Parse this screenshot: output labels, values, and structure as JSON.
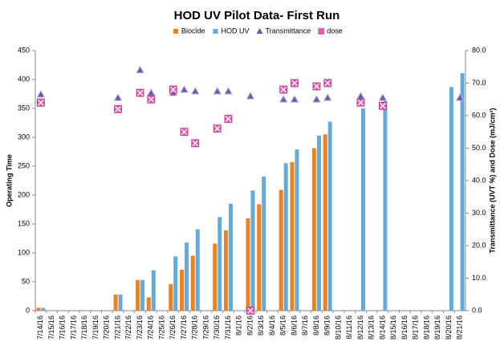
{
  "chart_data": {
    "type": "combo",
    "title": "HOD UV Pilot Data- First Run",
    "y_label": "Operating Time",
    "y2_label": "Transmittance (UVT %) and Dose (mJ/cm²)",
    "legend": "top",
    "categories": [
      "7/14/16",
      "7/15/16",
      "7/16/16",
      "7/17/16",
      "7/18/16",
      "7/19/16",
      "7/20/16",
      "7/21/16",
      "7/22/16",
      "7/23/16",
      "7/24/16",
      "7/25/16",
      "7/26/16",
      "7/27/16",
      "7/28/16",
      "7/29/16",
      "7/30/16",
      "7/31/16",
      "8/1/16",
      "8/2/16",
      "8/3/16",
      "8/4/16",
      "8/5/16",
      "8/6/16",
      "8/7/16",
      "8/8/16",
      "8/9/16",
      "8/10/16",
      "8/11/16",
      "8/12/16",
      "8/13/16",
      "8/14/16",
      "8/15/16",
      "8/16/16",
      "8/17/16",
      "8/18/16",
      "8/19/16",
      "8/20/16",
      "8/21/16"
    ],
    "ylim": [
      0,
      450
    ],
    "yticks": [
      0,
      50,
      100,
      150,
      200,
      250,
      300,
      350,
      400,
      450
    ],
    "y2lim": [
      0,
      80
    ],
    "y2ticks": [
      {
        "value": 0,
        "label": "0.0"
      },
      {
        "value": 10,
        "label": "10.0"
      },
      {
        "value": 20,
        "label": "20.0"
      },
      {
        "value": 30,
        "label": "30.0"
      },
      {
        "value": 40,
        "label": "40.0"
      },
      {
        "value": 50,
        "label": "50.0"
      },
      {
        "value": 60,
        "label": "60.0"
      },
      {
        "value": 70,
        "label": "70.0"
      },
      {
        "value": 80,
        "label": "80.0"
      }
    ],
    "series": [
      {
        "name": "Biocide",
        "kind": "bar",
        "color": "#f0821e",
        "axis": "y",
        "values": [
          5,
          null,
          null,
          null,
          null,
          null,
          null,
          28,
          null,
          53,
          23,
          null,
          46,
          71,
          95,
          null,
          116,
          139,
          null,
          160,
          184,
          null,
          209,
          257,
          null,
          281,
          305,
          null,
          null,
          null,
          null,
          null,
          null,
          null,
          null,
          null,
          null,
          null,
          null
        ]
      },
      {
        "name": "HOD UV",
        "kind": "bar",
        "color": "#67a9d8",
        "axis": "y",
        "values": [
          5,
          null,
          null,
          null,
          null,
          null,
          null,
          28,
          null,
          53,
          70,
          null,
          94,
          118,
          141,
          null,
          162,
          185,
          null,
          208,
          232,
          null,
          255,
          279,
          null,
          303,
          327,
          null,
          null,
          350,
          null,
          363,
          null,
          null,
          null,
          null,
          null,
          387,
          411
        ]
      },
      {
        "name": "Transmittance",
        "kind": "triangle",
        "color": "#6a5aa8",
        "axis": "y2",
        "values": [
          66.5,
          null,
          null,
          null,
          null,
          null,
          null,
          65.5,
          null,
          74,
          67,
          null,
          67,
          68,
          67.5,
          null,
          67.5,
          67.5,
          null,
          66,
          null,
          null,
          65,
          65,
          null,
          65,
          65.5,
          null,
          null,
          66,
          null,
          65.5,
          null,
          null,
          null,
          null,
          null,
          null,
          65.5
        ]
      },
      {
        "name": "dose",
        "kind": "xsquare",
        "color": "#e060b0",
        "axis": "y2",
        "values": [
          64,
          null,
          null,
          null,
          null,
          null,
          null,
          62,
          null,
          67,
          65,
          null,
          68,
          55,
          51.5,
          null,
          56,
          59,
          null,
          0,
          null,
          null,
          68,
          70,
          null,
          69,
          70,
          null,
          null,
          64,
          null,
          63,
          null,
          null,
          null,
          null,
          null,
          null,
          null
        ]
      }
    ]
  }
}
